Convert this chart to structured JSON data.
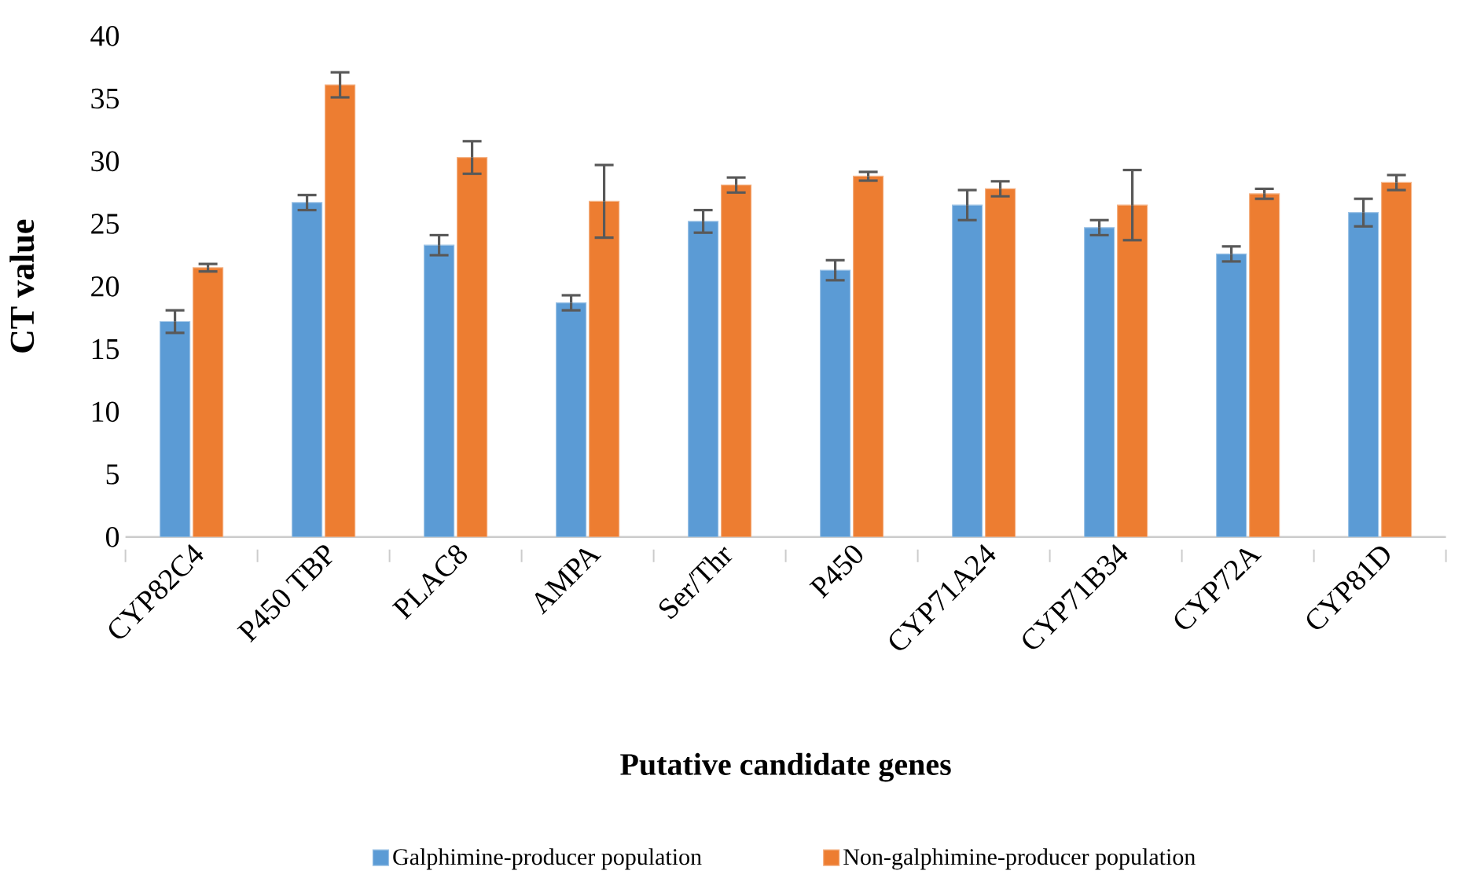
{
  "chart_data": {
    "type": "bar",
    "xlabel": "Putative candidate genes",
    "ylabel": "CT value",
    "categories": [
      "CYP82C4",
      "P450 TBP",
      "PLAC8",
      "AMPA",
      "Ser/Thr",
      "P450",
      "CYP71A24",
      "CYP71B34",
      "CYP72A",
      "CYP81D"
    ],
    "series": [
      {
        "name": "Galphimine-producer population",
        "color": "#5b9bd5",
        "values": [
          17.2,
          26.7,
          23.3,
          18.7,
          25.2,
          21.3,
          26.5,
          24.7,
          22.6,
          25.9
        ],
        "errors": [
          0.9,
          0.6,
          0.8,
          0.6,
          0.9,
          0.8,
          1.2,
          0.6,
          0.6,
          1.1
        ]
      },
      {
        "name": "Non-galphimine-producer population",
        "color": "#ed7d31",
        "values": [
          21.5,
          36.1,
          30.3,
          26.8,
          28.1,
          28.8,
          27.8,
          26.5,
          27.4,
          28.3
        ],
        "errors": [
          0.3,
          1.0,
          1.3,
          2.9,
          0.6,
          0.35,
          0.6,
          2.8,
          0.4,
          0.6
        ]
      }
    ],
    "ylim": [
      0,
      40
    ],
    "yticks": [
      0,
      5,
      10,
      15,
      20,
      25,
      30,
      35,
      40
    ],
    "grid": false,
    "legend": "bottom"
  }
}
